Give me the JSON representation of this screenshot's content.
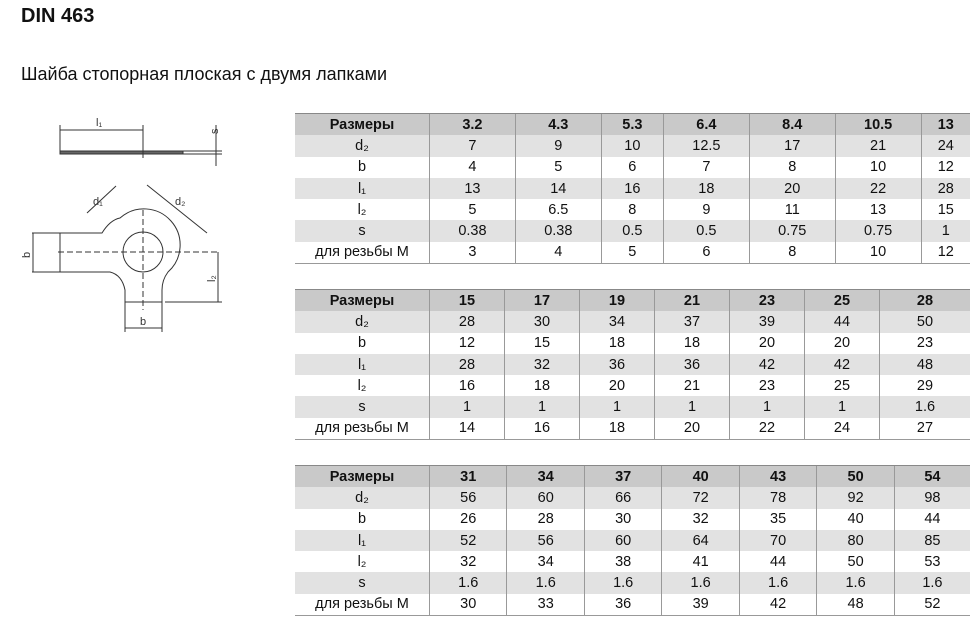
{
  "title": "DIN 463",
  "subtitle": "Шайба стопорная плоская с двумя лапками",
  "drawing_labels": {
    "l1": "l₁",
    "s": "s",
    "d1": "d₁",
    "d2": "d₂",
    "b_left": "b",
    "l2": "l₂",
    "b_bottom": "b"
  },
  "row_labels": [
    "Размеры",
    "d₂",
    "b",
    "l₁",
    "l₂",
    "s",
    "для резьбы M"
  ],
  "tables": [
    {
      "sizes": [
        "3.2",
        "4.3",
        "5.3",
        "6.4",
        "8.4",
        "10.5",
        "13"
      ],
      "rows": [
        [
          "7",
          "9",
          "10",
          "12.5",
          "17",
          "21",
          "24"
        ],
        [
          "4",
          "5",
          "6",
          "7",
          "8",
          "10",
          "12"
        ],
        [
          "13",
          "14",
          "16",
          "18",
          "20",
          "22",
          "28"
        ],
        [
          "5",
          "6.5",
          "8",
          "9",
          "11",
          "13",
          "15"
        ],
        [
          "0.38",
          "0.38",
          "0.5",
          "0.5",
          "0.75",
          "0.75",
          "1"
        ],
        [
          "3",
          "4",
          "5",
          "6",
          "8",
          "10",
          "12"
        ]
      ]
    },
    {
      "sizes": [
        "15",
        "17",
        "19",
        "21",
        "23",
        "25",
        "28"
      ],
      "rows": [
        [
          "28",
          "30",
          "34",
          "37",
          "39",
          "44",
          "50"
        ],
        [
          "12",
          "15",
          "18",
          "18",
          "20",
          "20",
          "23"
        ],
        [
          "28",
          "32",
          "36",
          "36",
          "42",
          "42",
          "48"
        ],
        [
          "16",
          "18",
          "20",
          "21",
          "23",
          "25",
          "29"
        ],
        [
          "1",
          "1",
          "1",
          "1",
          "1",
          "1",
          "1.6"
        ],
        [
          "14",
          "16",
          "18",
          "20",
          "22",
          "24",
          "27"
        ]
      ]
    },
    {
      "sizes": [
        "31",
        "34",
        "37",
        "40",
        "43",
        "50",
        "54"
      ],
      "rows": [
        [
          "56",
          "60",
          "66",
          "72",
          "78",
          "92",
          "98"
        ],
        [
          "26",
          "28",
          "30",
          "32",
          "35",
          "40",
          "44"
        ],
        [
          "52",
          "56",
          "60",
          "64",
          "70",
          "80",
          "85"
        ],
        [
          "32",
          "34",
          "38",
          "41",
          "44",
          "50",
          "53"
        ],
        [
          "1.6",
          "1.6",
          "1.6",
          "1.6",
          "1.6",
          "1.6",
          "1.6"
        ],
        [
          "30",
          "33",
          "36",
          "39",
          "42",
          "48",
          "52"
        ]
      ]
    }
  ]
}
